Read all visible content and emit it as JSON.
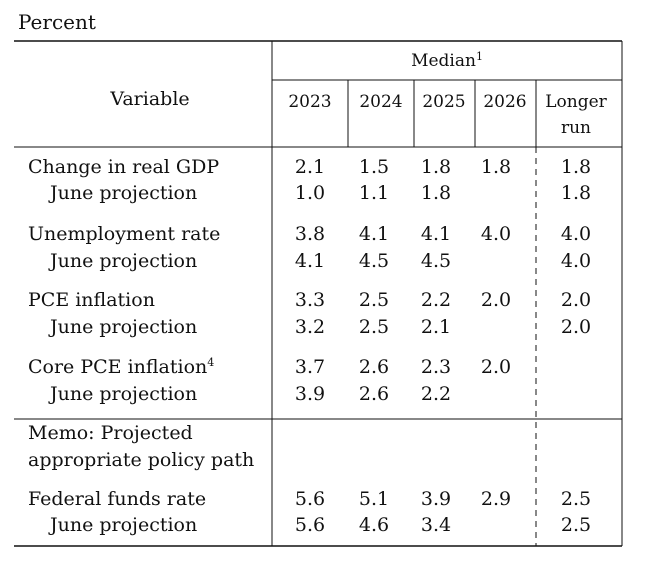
{
  "unit_label": "Percent",
  "header": {
    "variable_label": "Variable",
    "median_label": "Median",
    "median_footnote": "1",
    "columns": [
      "2023",
      "2024",
      "2025",
      "2026"
    ],
    "longer_run_line1": "Longer",
    "longer_run_line2": "run"
  },
  "rows": [
    {
      "label": "Change in real GDP",
      "footnote": "",
      "values": [
        "2.1",
        "1.5",
        "1.8",
        "1.8",
        "1.8"
      ]
    },
    {
      "label": "June projection",
      "footnote": "",
      "values": [
        "1.0",
        "1.1",
        "1.8",
        "",
        "1.8"
      ]
    },
    {
      "label": "Unemployment rate",
      "footnote": "",
      "values": [
        "3.8",
        "4.1",
        "4.1",
        "4.0",
        "4.0"
      ]
    },
    {
      "label": "June projection",
      "footnote": "",
      "values": [
        "4.1",
        "4.5",
        "4.5",
        "",
        "4.0"
      ]
    },
    {
      "label": "PCE inflation",
      "footnote": "",
      "values": [
        "3.3",
        "2.5",
        "2.2",
        "2.0",
        "2.0"
      ]
    },
    {
      "label": "June projection",
      "footnote": "",
      "values": [
        "3.2",
        "2.5",
        "2.1",
        "",
        "2.0"
      ]
    },
    {
      "label": "Core PCE inflation",
      "footnote": "4",
      "values": [
        "3.7",
        "2.6",
        "2.3",
        "2.0",
        ""
      ]
    },
    {
      "label": "June projection",
      "footnote": "",
      "values": [
        "3.9",
        "2.6",
        "2.2",
        "",
        ""
      ]
    }
  ],
  "memo": {
    "line1": "Memo: Projected",
    "line2": "appropriate policy path"
  },
  "memo_rows": [
    {
      "label": "Federal funds rate",
      "values": [
        "5.6",
        "5.1",
        "3.9",
        "2.9",
        "2.5"
      ]
    },
    {
      "label": "June projection",
      "values": [
        "5.6",
        "4.6",
        "3.4",
        "",
        "2.5"
      ]
    }
  ]
}
